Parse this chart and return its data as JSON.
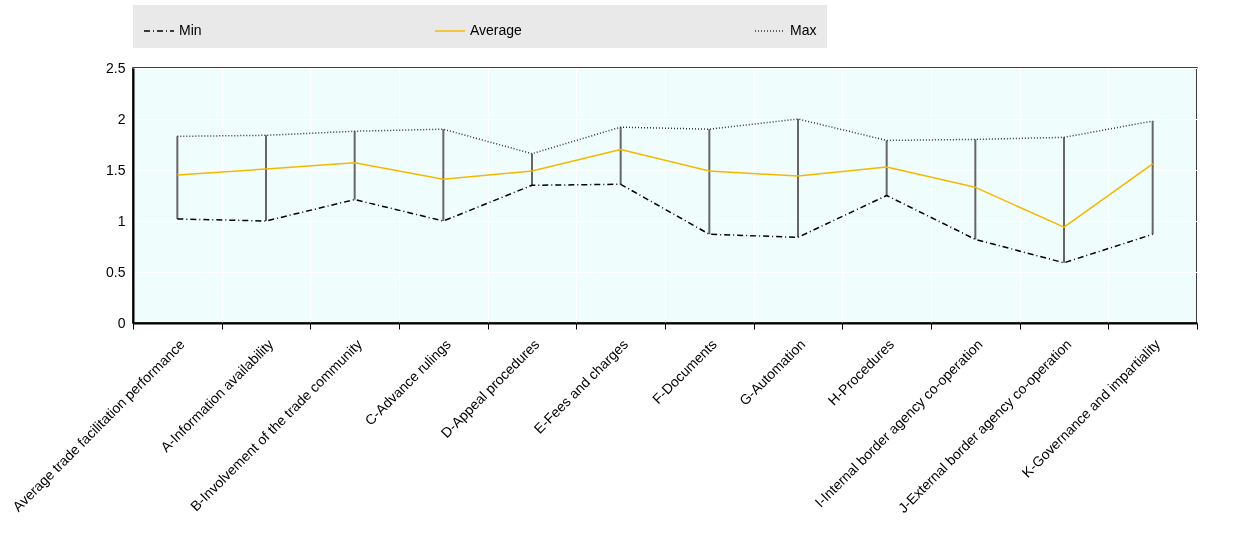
{
  "chart_data": {
    "type": "line",
    "categories": [
      "Average trade facilitation performance",
      "A-Information availability",
      "B-Involvement of the trade community",
      "C-Advance rulings",
      "D-Appeal procedures",
      "E-Fees and charges",
      "F-Documents",
      "G-Automation",
      "H-Procedures",
      "I-Internal border agency co-operation",
      "J-External border agency co-operation",
      "K-Governance and impartiality"
    ],
    "series": [
      {
        "name": "Min",
        "color": "#000000",
        "line_style": "dashdot",
        "values": [
          1.02,
          1.0,
          1.21,
          1.0,
          1.35,
          1.36,
          0.87,
          0.84,
          1.25,
          0.82,
          0.59,
          0.87
        ]
      },
      {
        "name": "Average",
        "color": "#f5b800",
        "line_style": "solid",
        "values": [
          1.45,
          1.51,
          1.57,
          1.41,
          1.49,
          1.7,
          1.49,
          1.44,
          1.53,
          1.33,
          0.94,
          1.56
        ],
        "errors": [
          [
            1.02,
            1.83
          ],
          [
            1.0,
            1.84
          ],
          [
            1.21,
            1.88
          ],
          [
            1.0,
            1.9
          ],
          [
            1.35,
            1.66
          ],
          [
            1.36,
            1.92
          ],
          [
            0.87,
            1.9
          ],
          [
            0.84,
            2.0
          ],
          [
            1.25,
            1.79
          ],
          [
            0.82,
            1.8
          ],
          [
            0.59,
            1.82
          ],
          [
            0.87,
            1.98
          ]
        ]
      },
      {
        "name": "Max",
        "color": "#333333",
        "line_style": "dotted",
        "values": [
          1.83,
          1.84,
          1.88,
          1.9,
          1.66,
          1.92,
          1.9,
          2.0,
          1.79,
          1.8,
          1.82,
          1.98
        ]
      }
    ],
    "ylim": [
      0,
      2.5
    ],
    "yticks": [
      0,
      0.5,
      1,
      1.5,
      2,
      2.5
    ],
    "grid": true,
    "legend": "top",
    "marker": "none"
  }
}
